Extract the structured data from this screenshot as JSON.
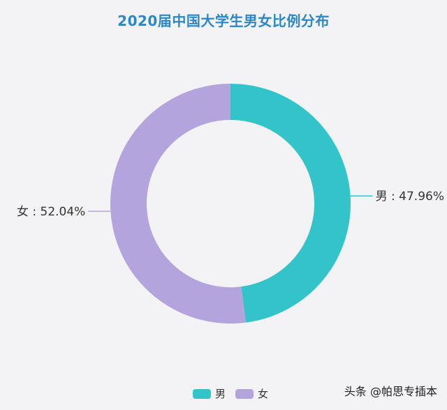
{
  "chart_data": {
    "type": "pie",
    "variant": "donut",
    "title": "2020届中国大学生男女比例分布",
    "categories": [
      "男",
      "女"
    ],
    "values": [
      47.96,
      52.04
    ],
    "value_labels": [
      "男 : 47.96%",
      "女 : 52.04%"
    ],
    "colors": [
      "#33c4c9",
      "#b3a4dd"
    ],
    "legend": "bottom"
  },
  "watermark": "头条 @帕思专插本"
}
